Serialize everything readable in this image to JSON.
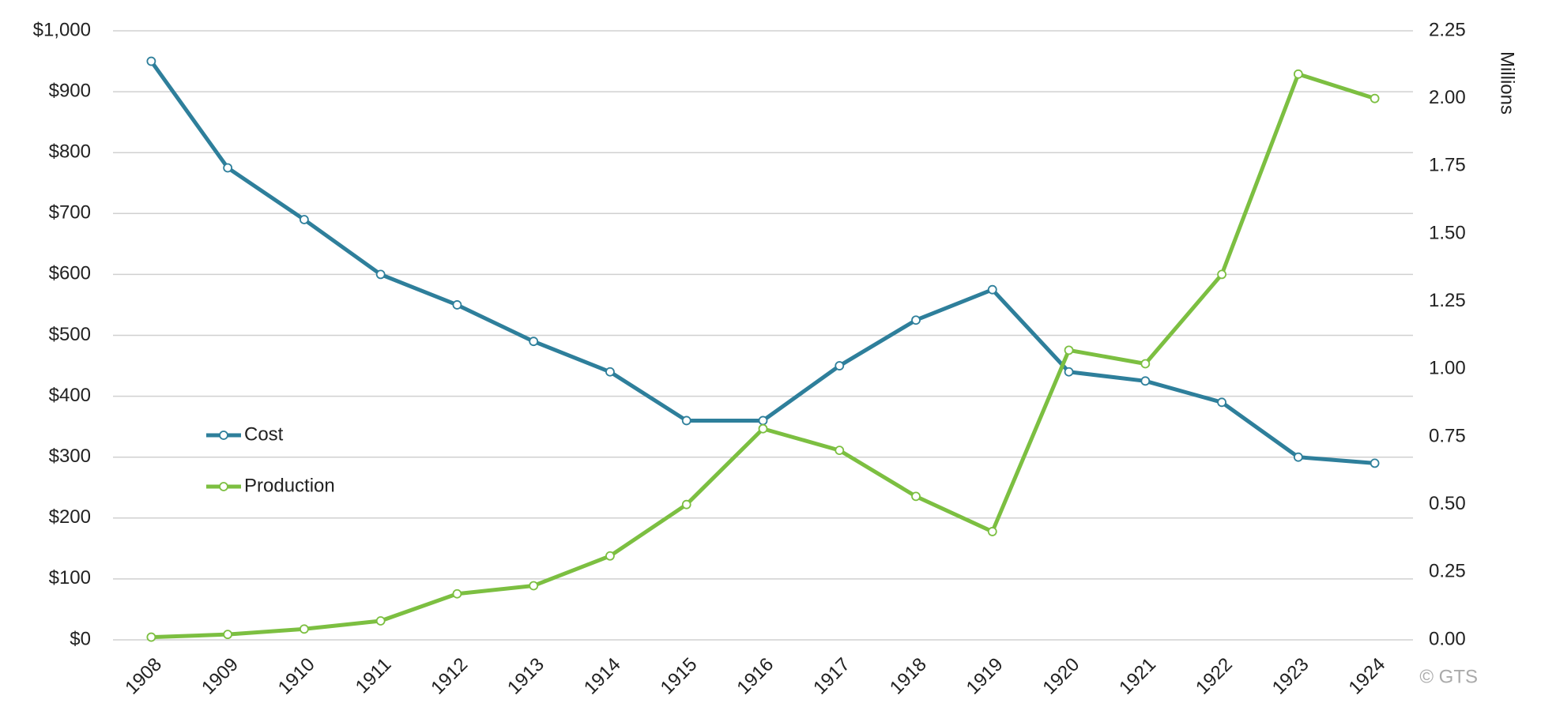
{
  "chart_data": {
    "type": "line",
    "y2label": "Millions",
    "watermark": "© GTS",
    "categories": [
      "1908",
      "1909",
      "1910",
      "1911",
      "1912",
      "1913",
      "1914",
      "1915",
      "1916",
      "1917",
      "1918",
      "1919",
      "1920",
      "1921",
      "1922",
      "1923",
      "1924"
    ],
    "series": [
      {
        "name": "Cost",
        "color": "#2e7f9b",
        "values": [
          950,
          775,
          690,
          600,
          550,
          490,
          440,
          360,
          360,
          450,
          525,
          575,
          440,
          425,
          390,
          300,
          290
        ]
      },
      {
        "name": "Production",
        "color": "#7cbf41",
        "axis": "y2",
        "values": [
          0.01,
          0.02,
          0.04,
          0.07,
          0.17,
          0.2,
          0.31,
          0.5,
          0.78,
          0.7,
          0.53,
          0.4,
          1.07,
          1.02,
          1.35,
          2.09,
          2.0
        ]
      }
    ],
    "ylim": [
      0,
      1000
    ],
    "yticks": [
      {
        "value": 0,
        "label": "$0"
      },
      {
        "value": 100,
        "label": "$100"
      },
      {
        "value": 200,
        "label": "$200"
      },
      {
        "value": 300,
        "label": "$300"
      },
      {
        "value": 400,
        "label": "$400"
      },
      {
        "value": 500,
        "label": "$500"
      },
      {
        "value": 600,
        "label": "$600"
      },
      {
        "value": 700,
        "label": "$700"
      },
      {
        "value": 800,
        "label": "$800"
      },
      {
        "value": 900,
        "label": "$900"
      },
      {
        "value": 1000,
        "label": "$1,000"
      }
    ],
    "y2lim": [
      0,
      2.25
    ],
    "y2ticks": [
      {
        "value": 0,
        "label": "0.00"
      },
      {
        "value": 0.25,
        "label": "0.25"
      },
      {
        "value": 0.5,
        "label": "0.50"
      },
      {
        "value": 0.75,
        "label": "0.75"
      },
      {
        "value": 1,
        "label": "1.00"
      },
      {
        "value": 1.25,
        "label": "1.25"
      },
      {
        "value": 1.5,
        "label": "1.50"
      },
      {
        "value": 1.75,
        "label": "1.75"
      },
      {
        "value": 2,
        "label": "2.00"
      },
      {
        "value": 2.25,
        "label": "2.25"
      }
    ],
    "grid": true,
    "legend": "left"
  }
}
